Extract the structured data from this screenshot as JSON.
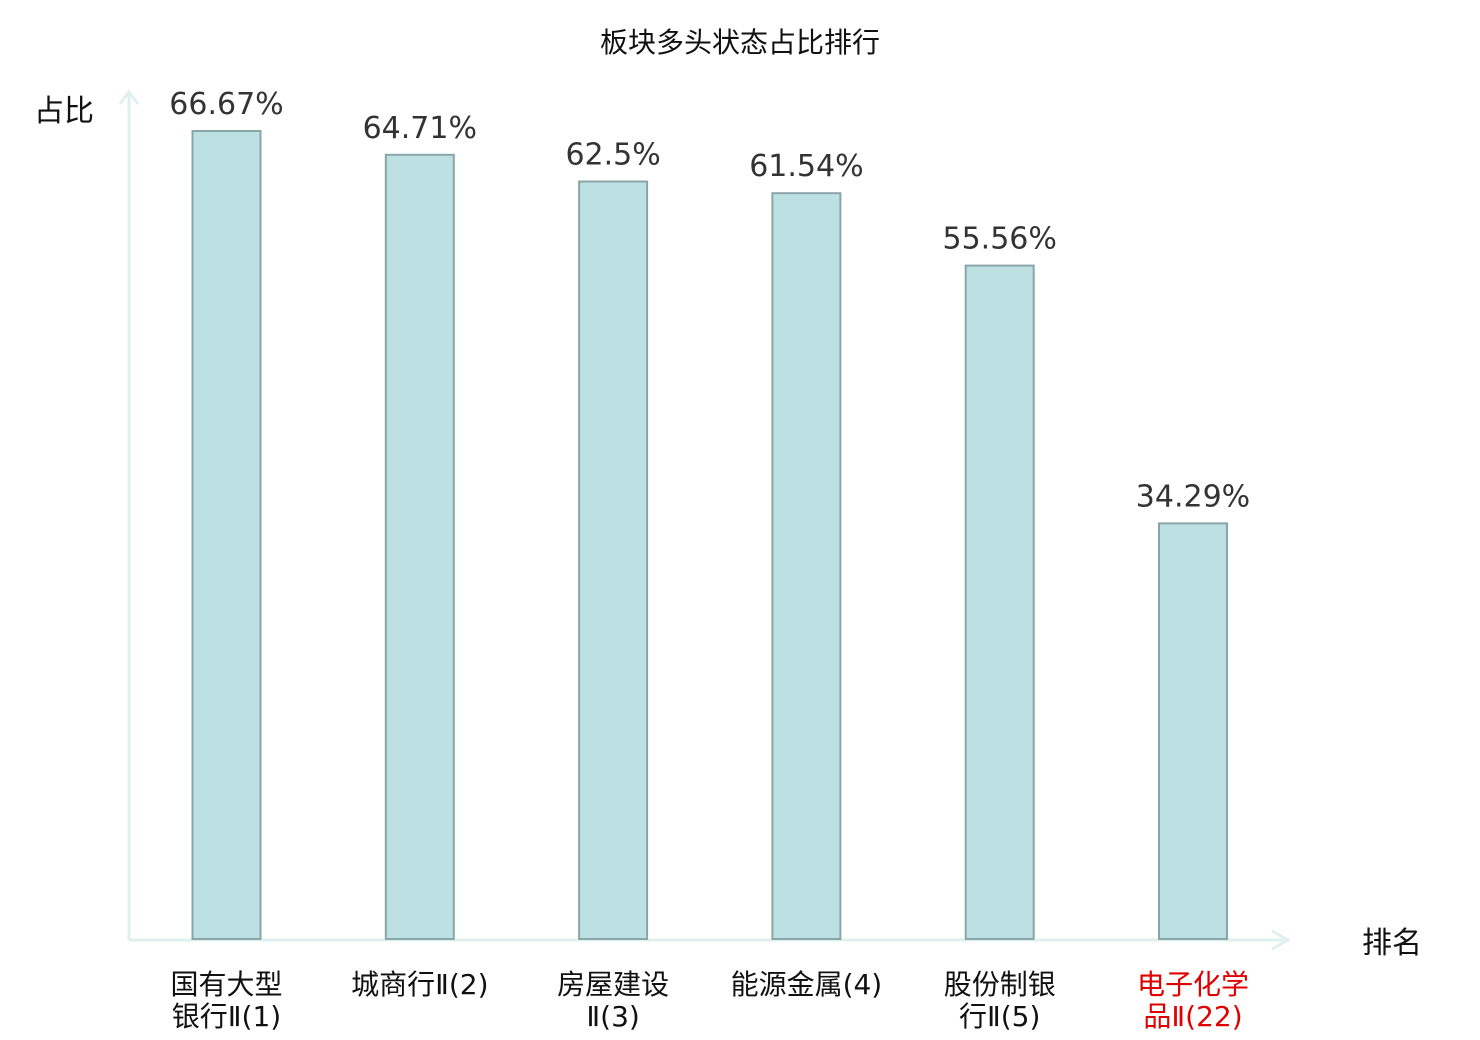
{
  "chart_data": {
    "type": "bar",
    "title": "板块多头状态占比排行",
    "ylabel": "占比",
    "xlabel": "排名",
    "ylim": [
      0,
      70
    ],
    "grid": false,
    "categories": [
      [
        "国有大型",
        "银行Ⅱ(1)"
      ],
      [
        "城商行Ⅱ(2)"
      ],
      [
        "房屋建设",
        "Ⅱ(3)"
      ],
      [
        "能源金属(4)"
      ],
      [
        "股份制银",
        "行Ⅱ(5)"
      ],
      [
        "电子化学",
        "品Ⅱ(22)"
      ]
    ],
    "values": [
      66.67,
      64.71,
      62.5,
      61.54,
      55.56,
      34.29
    ],
    "value_labels": [
      "66.67%",
      "64.71%",
      "62.5%",
      "61.54%",
      "55.56%",
      "34.29%"
    ],
    "highlight_index": 5,
    "colors": {
      "bar_fill": "#bde0e3",
      "bar_stroke": "#8aa5a8",
      "axis": "#dff1ef",
      "category_text": "#111111",
      "highlight_text": "#e00000"
    }
  }
}
